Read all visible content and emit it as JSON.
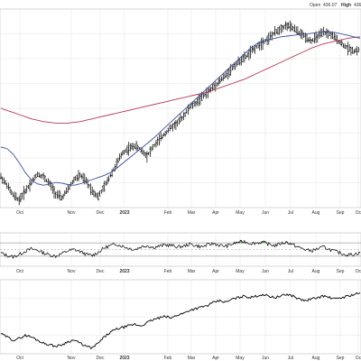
{
  "header": {
    "open_label": "Open",
    "open_value": "436.07",
    "high_label": "High",
    "high_value": "436"
  },
  "chart_data": [
    {
      "type": "line",
      "panel": "price",
      "subtype": "ohlc-bars-with-moving-averages",
      "x_tick_labels": [
        "Oct",
        "Nov",
        "Dec",
        "2023",
        "Feb",
        "Mar",
        "Apr",
        "May",
        "Jun",
        "Jul",
        "Aug",
        "Sep",
        "Oc"
      ],
      "bold_tick_labels": [
        "2023"
      ],
      "x_period": {
        "start": "2022-09",
        "end": "2023-10"
      },
      "grid": true,
      "series": [
        {
          "role": "price",
          "color": "#000000",
          "values": [
            108,
            96,
            82,
            75,
            88,
            100,
            112,
            108,
            98,
            84,
            78,
            90,
            104,
            110,
            102,
            88,
            80,
            94,
            110,
            126,
            142,
            148,
            152,
            146,
            138,
            150,
            160,
            170,
            178,
            184,
            194,
            206,
            212,
            220,
            228,
            236,
            244,
            252,
            262,
            270,
            276,
            284,
            292,
            298,
            304,
            312,
            318,
            322,
            318,
            312,
            306,
            300,
            306,
            312,
            310,
            304,
            296,
            290,
            286,
            288
          ]
        },
        {
          "role": "moving-average-short",
          "color": "#3a4f9c",
          "values": [
            150,
            148,
            140,
            128,
            114,
            104,
            98,
            96,
            98,
            100,
            99,
            97,
            96,
            98,
            101,
            104,
            107,
            110,
            114,
            120,
            127,
            134,
            141,
            148,
            155,
            162,
            170,
            178,
            186,
            194,
            202,
            210,
            218,
            226,
            234,
            242,
            250,
            258,
            266,
            274,
            282,
            290,
            296,
            300,
            302,
            304,
            306,
            307,
            308,
            309,
            310,
            311,
            312,
            313,
            313,
            312,
            310,
            308,
            306,
            304
          ]
        },
        {
          "role": "moving-average-long",
          "color": "#b23a55",
          "values": [
            205,
            202,
            199,
            196,
            193,
            190,
            188,
            186,
            185,
            184,
            184,
            184,
            185,
            186,
            188,
            190,
            192,
            194,
            196,
            198,
            200,
            202,
            204,
            206,
            208,
            210,
            212,
            214,
            216,
            218,
            220,
            222,
            224,
            226,
            228,
            231,
            234,
            237,
            240,
            243,
            246,
            250,
            254,
            258,
            262,
            266,
            270,
            274,
            278,
            282,
            286,
            290,
            293,
            296,
            298,
            300,
            302,
            304,
            305,
            306
          ]
        }
      ]
    },
    {
      "type": "line",
      "panel": "oscillator",
      "color": "#000000",
      "overbought_fill": "#3f8a3f",
      "reference_levels": [
        70,
        50,
        30
      ],
      "ylim": [
        0,
        100
      ],
      "values": [
        40,
        32,
        28,
        35,
        45,
        52,
        48,
        40,
        34,
        30,
        38,
        46,
        50,
        44,
        36,
        32,
        42,
        55,
        62,
        66,
        60,
        54,
        50,
        58,
        62,
        56,
        60,
        64,
        62,
        58,
        60,
        66,
        62,
        58,
        64,
        68,
        62,
        60,
        66,
        72,
        74,
        68,
        70,
        72,
        66,
        62,
        68,
        72,
        64,
        56,
        50,
        46,
        52,
        58,
        50,
        44,
        38,
        34,
        36,
        40
      ]
    },
    {
      "type": "line",
      "panel": "relative-strength",
      "color": "#000000",
      "values": [
        30,
        26,
        22,
        24,
        28,
        26,
        22,
        18,
        16,
        14,
        16,
        20,
        22,
        18,
        14,
        12,
        18,
        26,
        32,
        36,
        38,
        40,
        42,
        40,
        44,
        48,
        50,
        52,
        50,
        54,
        56,
        60,
        62,
        64,
        66,
        70,
        72,
        70,
        74,
        76,
        78,
        76,
        78,
        80,
        78,
        76,
        78,
        80,
        78,
        74,
        72,
        74,
        76,
        78,
        76,
        74,
        76,
        78,
        80,
        82
      ]
    }
  ]
}
